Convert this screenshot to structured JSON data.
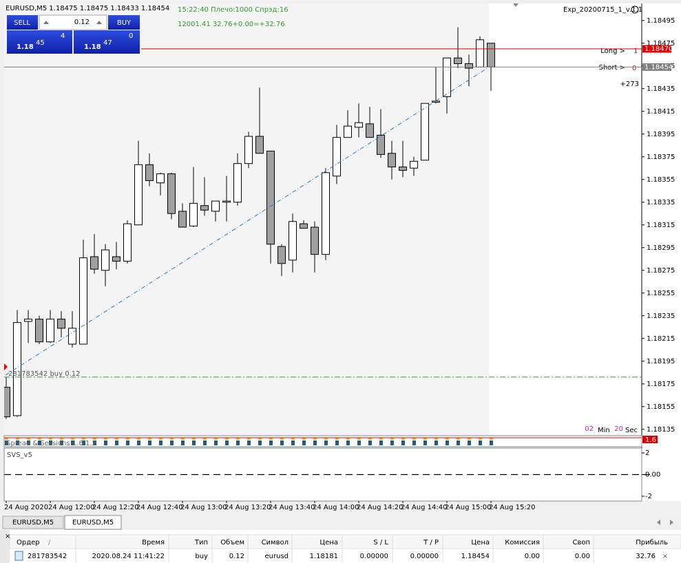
{
  "window": {
    "symbol_header": "EURUSD,M5  1.18475 1.18475 1.18433 1.18454",
    "expert": "Exp_20200715_1_v.1.1"
  },
  "trade_panel": {
    "sell": "SELL",
    "buy": "BUY",
    "lot": "0.12",
    "bid_big": "1.18",
    "bid_digits": "45",
    "bid_pip": "4",
    "ask_big": "1.18",
    "ask_digits": "47",
    "ask_pip": "0"
  },
  "info": {
    "line1": "15:22:40 Плечо:1000 Спрэд:16",
    "line2": "12001.41 32.76+0.00=+32.76"
  },
  "positions": {
    "long_label": "Long >",
    "long_count": "1",
    "short_label": "Short >",
    "short_count": "0",
    "points": "+273"
  },
  "timer": {
    "min": "02",
    "min_label": "Min",
    "sec": "20",
    "sec_label": "Sec"
  },
  "order_label": "281783542 buy 0.12",
  "chart_data": {
    "type": "candlestick",
    "categories": [
      "24 Aug 2020",
      null,
      null,
      null,
      "24 Aug 12:00",
      null,
      null,
      null,
      "24 Aug 12:20",
      null,
      null,
      null,
      "24 Aug 12:40",
      null,
      null,
      null,
      "24 Aug 13:00",
      null,
      null,
      null,
      "24 Aug 13:20",
      null,
      null,
      null,
      "24 Aug 13:40",
      null,
      null,
      null,
      "24 Aug 14:00",
      null,
      null,
      null,
      "24 Aug 14:20",
      null,
      null,
      null,
      "24 Aug 14:40",
      null,
      null,
      null,
      "24 Aug 15:00",
      null,
      null,
      null,
      "24 Aug 15:20"
    ],
    "open": [
      1.18172,
      1.18147,
      1.1823,
      1.18232,
      1.18212,
      1.18232,
      1.1821,
      1.1821,
      1.18287,
      1.18275,
      1.18287,
      1.18283,
      1.18315,
      1.18368,
      1.18352,
      1.1836,
      1.18327,
      1.18314,
      1.18332,
      1.18327,
      1.18335,
      1.18335,
      1.18369,
      1.18393,
      1.1838,
      1.18296,
      1.18284,
      1.18316,
      1.18313,
      1.18289,
      1.18358,
      1.18392,
      1.18401,
      1.18404,
      1.18394,
      1.18378,
      1.18366,
      1.18365,
      1.18372,
      1.18423,
      1.18428,
      1.18462,
      1.18457,
      1.18454,
      1.18475
    ],
    "high": [
      1.18181,
      1.1824,
      1.1824,
      1.18235,
      1.1824,
      1.18239,
      1.18239,
      1.18302,
      1.18307,
      1.18298,
      1.183,
      1.18319,
      1.18389,
      1.18378,
      1.18361,
      1.18361,
      1.18334,
      1.18366,
      1.18357,
      1.18336,
      1.18358,
      1.18378,
      1.18397,
      1.18436,
      1.1838,
      1.18298,
      1.18325,
      1.18319,
      1.18318,
      1.18365,
      1.18403,
      1.18416,
      1.18422,
      1.18419,
      1.18417,
      1.18389,
      1.18389,
      1.18375,
      1.18422,
      1.18454,
      1.18462,
      1.18489,
      1.18465,
      1.18481,
      1.18475
    ],
    "low": [
      1.18144,
      1.18146,
      1.18211,
      1.1821,
      1.18211,
      1.18216,
      1.18207,
      1.1821,
      1.18272,
      1.18261,
      1.18276,
      1.18281,
      1.18315,
      1.18349,
      1.18341,
      1.1832,
      1.18313,
      1.18313,
      1.18323,
      1.18318,
      1.18318,
      1.18332,
      1.18365,
      1.18378,
      1.18281,
      1.1827,
      1.18273,
      1.18312,
      1.18273,
      1.18284,
      1.18351,
      1.18392,
      1.18392,
      1.18392,
      1.18374,
      1.18355,
      1.18357,
      1.18358,
      1.18372,
      1.18422,
      1.18413,
      1.18453,
      1.18437,
      1.18454,
      1.18433
    ],
    "close": [
      1.18146,
      1.18229,
      1.18232,
      1.18212,
      1.18232,
      1.18224,
      1.18224,
      1.18286,
      1.18276,
      1.18293,
      1.18283,
      1.18316,
      1.18368,
      1.18354,
      1.1836,
      1.18325,
      1.18313,
      1.18334,
      1.18328,
      1.18336,
      1.18336,
      1.18369,
      1.18393,
      1.18378,
      1.18298,
      1.18281,
      1.18318,
      1.18312,
      1.18289,
      1.18361,
      1.18392,
      1.18402,
      1.18405,
      1.18392,
      1.18377,
      1.18366,
      1.18363,
      1.18371,
      1.18422,
      1.18424,
      1.18462,
      1.18457,
      1.18453,
      1.18478,
      1.18454
    ],
    "ylim": [
      1.1813,
      1.1851
    ],
    "yticks": [
      1.18495,
      1.18475,
      1.18455,
      1.18435,
      1.18415,
      1.18395,
      1.18375,
      1.18355,
      1.18335,
      1.18315,
      1.18295,
      1.18275,
      1.18255,
      1.18235,
      1.18215,
      1.18195,
      1.18175,
      1.18155,
      1.18135
    ],
    "up_color": "#ffffff",
    "down_color": "#a0a0a0",
    "price_lines": [
      {
        "value": 1.1847,
        "label": "1.18470",
        "color": "#e00000"
      },
      {
        "value": 1.18454,
        "label": "1.18454",
        "color": "#808080"
      }
    ],
    "order_line": {
      "value": 1.18181,
      "color": "#22aa22"
    }
  },
  "indicator": {
    "name": "Spread & Sessions 1.6 1.2",
    "tag": "1.6"
  },
  "subwindow": {
    "name": "SVS_v5",
    "ylim": [
      -2.45,
      2.45
    ],
    "yticks": [
      2,
      {
        "value": 0,
        "label": "0.00"
      },
      -2
    ],
    "level": 0
  },
  "tabs": [
    "EURUSD,M5",
    "EURUSD,M5"
  ],
  "table": {
    "headers": [
      "Ордер",
      "Время",
      "Тип",
      "Объем",
      "Символ",
      "Цена",
      "S / L",
      "T / P",
      "Цена",
      "Комиссия",
      "Своп",
      "Прибыль"
    ],
    "rows": [
      [
        "281783542",
        "2020.08.24 11:41:22",
        "buy",
        "0.12",
        "eurusd",
        "1.18181",
        "0.00000",
        "0.00000",
        "1.18454",
        "0.00",
        "0.00",
        "32.76"
      ]
    ]
  }
}
